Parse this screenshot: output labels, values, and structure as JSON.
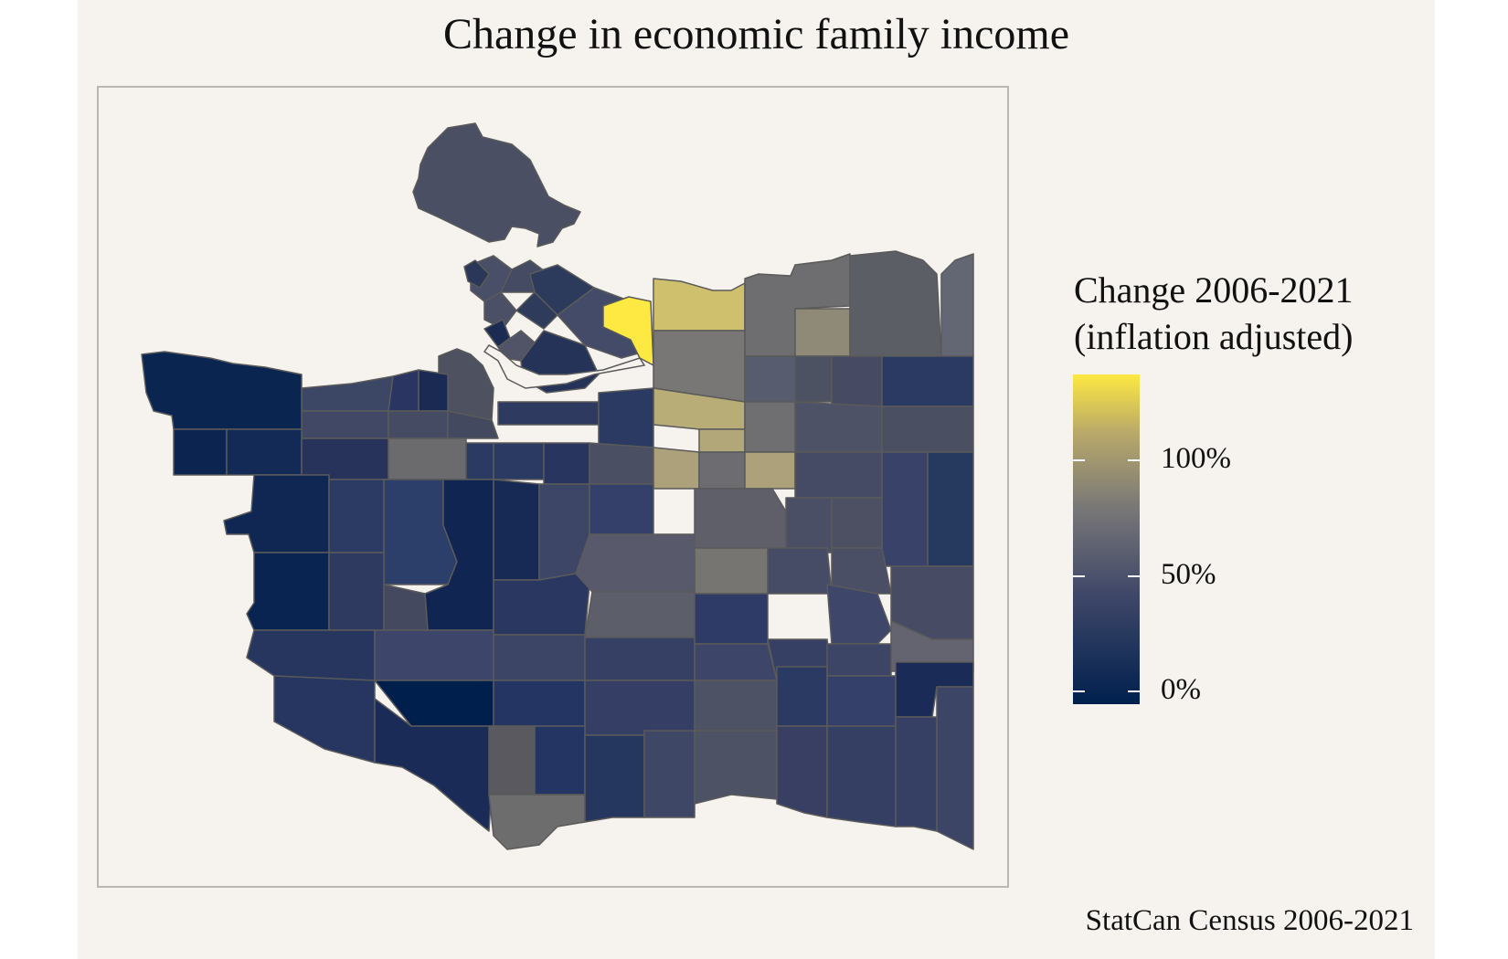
{
  "title": "Change in economic family income",
  "legend": {
    "title_line1": "Change 2006-2021",
    "title_line2": "(inflation adjusted)",
    "ticks": [
      "100%",
      "50%",
      "0%"
    ],
    "colors": {
      "high": "#fde941",
      "mid_high": "#b8a86a",
      "mid": "#777677",
      "mid_low": "#3f4768",
      "low": "#00204e"
    }
  },
  "caption": "StatCan Census 2006-2021",
  "colors": {
    "background": "#f6f3ef",
    "frame": "#b9b6b3",
    "boundary": "#5a5a5a"
  }
}
